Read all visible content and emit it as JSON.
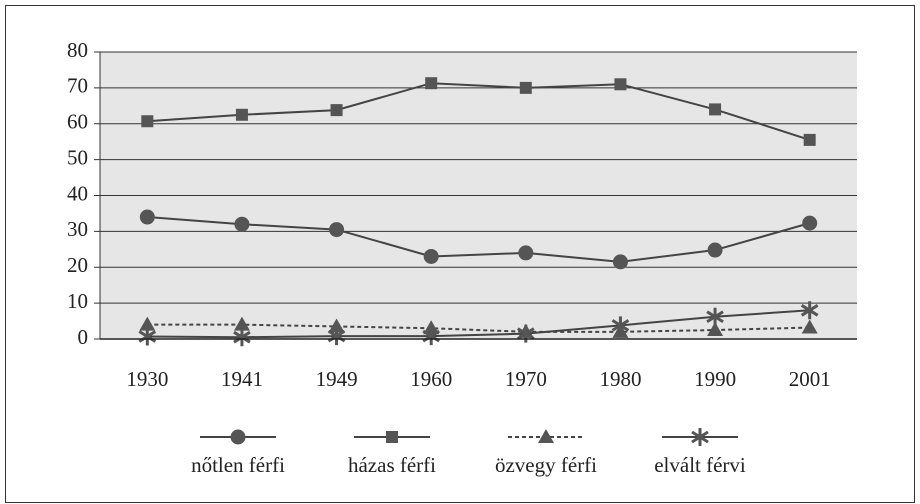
{
  "chart_data": {
    "type": "line",
    "categories": [
      "1930",
      "1941",
      "1949",
      "1960",
      "1970",
      "1980",
      "1990",
      "2001"
    ],
    "series": [
      {
        "name": "nőtlen férfi",
        "color": "#444444",
        "marker": "circle",
        "dash": false,
        "values": [
          34,
          32,
          30.5,
          23,
          24,
          21.5,
          24.8,
          32.3
        ]
      },
      {
        "name": "házas férfi",
        "color": "#444444",
        "marker": "square",
        "dash": false,
        "values": [
          60.7,
          62.5,
          63.8,
          71.3,
          70,
          71,
          64,
          55.5
        ]
      },
      {
        "name": "özvegy férfi",
        "color": "#444444",
        "marker": "triangle",
        "dash": true,
        "values": [
          4,
          4,
          3.5,
          3,
          2,
          2,
          2.5,
          3.2
        ]
      },
      {
        "name": "elvált férvi",
        "color": "#444444",
        "marker": "asterisk",
        "dash": false,
        "values": [
          0.7,
          0.5,
          0.8,
          0.8,
          1.5,
          3.8,
          6.2,
          8
        ]
      }
    ],
    "ylim": [
      0,
      80
    ],
    "yticks": [
      0,
      10,
      20,
      30,
      40,
      50,
      60,
      70,
      80
    ],
    "grid": true
  }
}
